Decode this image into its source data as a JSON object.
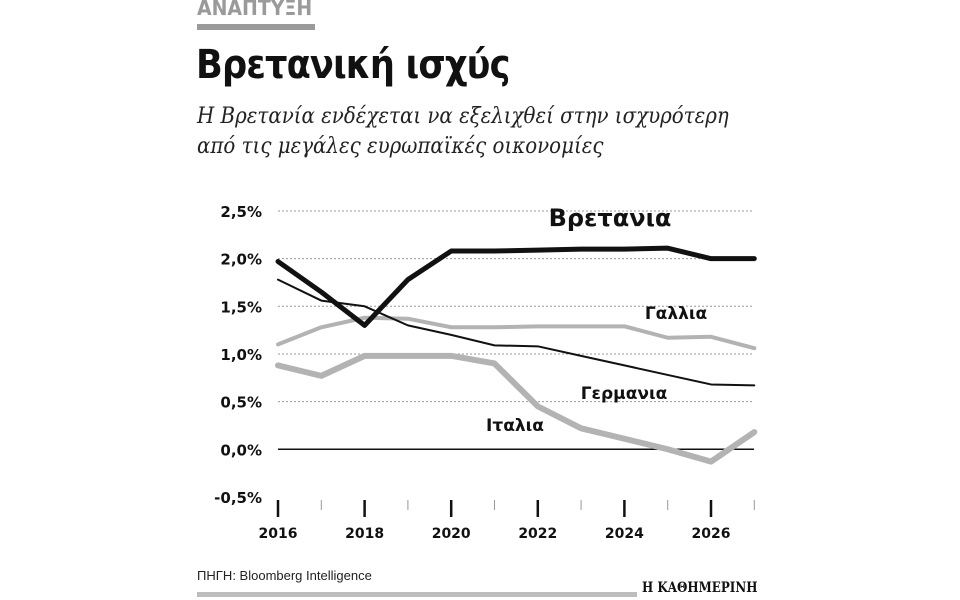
{
  "header": {
    "kicker": "ΑΝΑΠΤΥΞΗ",
    "title": "Βρετανική ισχύς",
    "subtitle_line1": "Η Βρετανία ενδέχεται να εξελιχθεί στην ισχυρότερη",
    "subtitle_line2": "από τις μεγάλες ευρωπαϊκές οικονομίες"
  },
  "footer": {
    "source": "ΠΗΓΗ: Bloomberg Intelligence",
    "brand": "Η ΚΑΘΗΜΕΡΙΝΗ"
  },
  "chart_data": {
    "type": "line",
    "x": [
      2016,
      2017,
      2018,
      2019,
      2020,
      2021,
      2022,
      2023,
      2024,
      2025,
      2026,
      2027
    ],
    "xticks": [
      "2016",
      "2018",
      "2020",
      "2022",
      "2024",
      "2026"
    ],
    "yticks": [
      "2,5%",
      "2,0%",
      "1,5%",
      "1,0%",
      "0,5%",
      "0,0%",
      "-0,5%"
    ],
    "ylim": [
      -0.5,
      2.5
    ],
    "grid": "horizontal dotted",
    "series": [
      {
        "name": "Βρετανια",
        "color": "#111111",
        "values": [
          1.97,
          1.65,
          1.3,
          1.78,
          2.08,
          2.08,
          2.09,
          2.1,
          2.1,
          2.11,
          2.0,
          2.0
        ]
      },
      {
        "name": "Γερμανια",
        "color": "#111111",
        "values": [
          1.78,
          1.56,
          1.5,
          1.3,
          1.2,
          1.09,
          1.08,
          0.98,
          0.88,
          0.78,
          0.68,
          0.67
        ]
      },
      {
        "name": "Γαλλια",
        "color": "#b3b3b3",
        "values": [
          1.1,
          1.28,
          1.38,
          1.37,
          1.28,
          1.28,
          1.29,
          1.29,
          1.29,
          1.17,
          1.18,
          1.06
        ]
      },
      {
        "name": "Ιταλια",
        "color": "#b3b3b3",
        "values": [
          0.88,
          0.77,
          0.98,
          0.98,
          0.98,
          0.9,
          0.45,
          0.22,
          0.11,
          0.0,
          -0.13,
          0.18
        ]
      }
    ]
  }
}
